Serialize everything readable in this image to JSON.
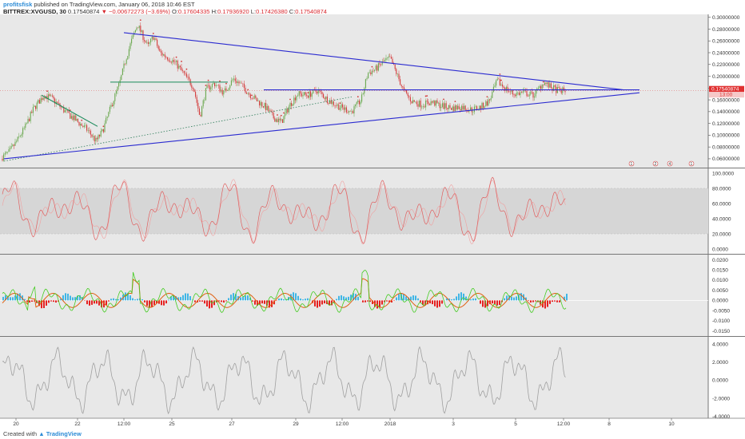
{
  "header": {
    "user": "profitsfisk",
    "published_text": "published on TradingView.com, January 06, 2018 10:46 EST",
    "symbol": "BITTREX:XVGUSD, 30",
    "last_value": "0.17540874",
    "change": "−0.00672273 (−3.69%)",
    "open_label": "O:",
    "open": "0.17604335",
    "high_label": "H:",
    "high": "0.17936920",
    "low_label": "L:",
    "low": "0.17426380",
    "close_label": "C:",
    "close": "0.17540874"
  },
  "footer": {
    "created_with": "Created with",
    "brand": "TradingView"
  },
  "colors": {
    "trend_line": "#2a2ad0",
    "candle_up": "#6aa84f",
    "candle_down": "#d33a3a",
    "stoch": "#e06060",
    "price_tag": "#e03030",
    "hist_up": "#3fb6e6",
    "hist_down": "#e62020",
    "macd_fast": "#44cc22",
    "macd_slow": "#e06010",
    "osc_line": "#a0a0a0"
  },
  "chart_data": {
    "type": "candlestick",
    "price_axis_labels": [
      "0.30000000",
      "0.28000000",
      "0.26000000",
      "0.24000000",
      "0.22000000",
      "0.20000000",
      "0.18000000",
      "0.16000000",
      "0.14000000",
      "0.12000000",
      "0.10000000",
      "0.08000000",
      "0.06000000"
    ],
    "price_ylim": [
      0.045,
      0.305
    ],
    "current_price_tag": "0.17540874",
    "countdown_tag": "13:00",
    "x_axis_labels": [
      "20",
      "22",
      "12:00",
      "25",
      "27",
      "29",
      "12:00",
      "2018",
      "3",
      "5",
      "12:00",
      "8",
      "10"
    ],
    "price_path": [
      [
        0,
        0.06
      ],
      [
        12,
        0.072
      ],
      [
        22,
        0.092
      ],
      [
        32,
        0.115
      ],
      [
        42,
        0.145
      ],
      [
        55,
        0.168
      ],
      [
        65,
        0.162
      ],
      [
        80,
        0.142
      ],
      [
        95,
        0.125
      ],
      [
        110,
        0.108
      ],
      [
        120,
        0.09
      ],
      [
        128,
        0.106
      ],
      [
        138,
        0.145
      ],
      [
        150,
        0.19
      ],
      [
        158,
        0.232
      ],
      [
        165,
        0.262
      ],
      [
        172,
        0.288
      ],
      [
        178,
        0.27
      ],
      [
        185,
        0.25
      ],
      [
        192,
        0.268
      ],
      [
        200,
        0.24
      ],
      [
        210,
        0.232
      ],
      [
        220,
        0.222
      ],
      [
        232,
        0.2
      ],
      [
        242,
        0.182
      ],
      [
        250,
        0.132
      ],
      [
        258,
        0.178
      ],
      [
        268,
        0.188
      ],
      [
        280,
        0.172
      ],
      [
        292,
        0.196
      ],
      [
        302,
        0.185
      ],
      [
        312,
        0.17
      ],
      [
        322,
        0.158
      ],
      [
        332,
        0.148
      ],
      [
        342,
        0.13
      ],
      [
        352,
        0.122
      ],
      [
        362,
        0.15
      ],
      [
        372,
        0.17
      ],
      [
        385,
        0.168
      ],
      [
        397,
        0.176
      ],
      [
        410,
        0.16
      ],
      [
        425,
        0.148
      ],
      [
        440,
        0.14
      ],
      [
        452,
        0.16
      ],
      [
        460,
        0.205
      ],
      [
        470,
        0.212
      ],
      [
        480,
        0.225
      ],
      [
        488,
        0.23
      ],
      [
        496,
        0.205
      ],
      [
        505,
        0.175
      ],
      [
        515,
        0.158
      ],
      [
        528,
        0.152
      ],
      [
        540,
        0.156
      ],
      [
        552,
        0.15
      ],
      [
        565,
        0.146
      ],
      [
        578,
        0.148
      ],
      [
        590,
        0.143
      ],
      [
        602,
        0.148
      ],
      [
        612,
        0.158
      ],
      [
        622,
        0.192
      ],
      [
        630,
        0.182
      ],
      [
        642,
        0.17
      ],
      [
        655,
        0.172
      ],
      [
        668,
        0.168
      ],
      [
        680,
        0.19
      ],
      [
        690,
        0.18
      ],
      [
        698,
        0.176
      ],
      [
        708,
        0.175
      ]
    ],
    "trend_lines": [
      {
        "from": [
          155,
          0.274
        ],
        "to": [
          780,
          0.177
        ]
      },
      {
        "from": [
          5,
          0.06
        ],
        "to": [
          800,
          0.172
        ]
      },
      {
        "from": [
          330,
          0.177
        ],
        "to": [
          800,
          0.177
        ]
      },
      {
        "from": [
          52,
          0.168
        ],
        "to": [
          122,
          0.115
        ]
      }
    ],
    "support_resistance": [
      {
        "from": [
          138,
          0.19
        ],
        "to": [
          285,
          0.19
        ]
      }
    ],
    "dotted_line": {
      "from": [
        5,
        0.056
      ],
      "to": [
        440,
        0.165
      ]
    },
    "event_markers": [
      {
        "x": 790,
        "label": "1"
      },
      {
        "x": 820,
        "label": "2"
      },
      {
        "x": 838,
        "label": "4"
      },
      {
        "x": 865,
        "label": "1"
      }
    ],
    "stoch_axis_labels": [
      "100.0000",
      "80.0000",
      "60.0000",
      "40.0000",
      "20.0000",
      "0.0000"
    ],
    "stoch_ylim": [
      0,
      100
    ],
    "stoch_band": [
      20,
      80
    ],
    "macd_axis_labels": [
      "0.0200",
      "0.0150",
      "0.0100",
      "0.0050",
      "0.0000",
      "-0.0050",
      "-0.0100",
      "-0.0150"
    ],
    "macd_ylim": [
      -0.016,
      0.021
    ],
    "osc_axis_labels": [
      "4.0000",
      "2.0000",
      "0.0000",
      "-2.0000",
      "-4.0000"
    ],
    "osc_ylim": [
      -4.2,
      4.8
    ]
  }
}
